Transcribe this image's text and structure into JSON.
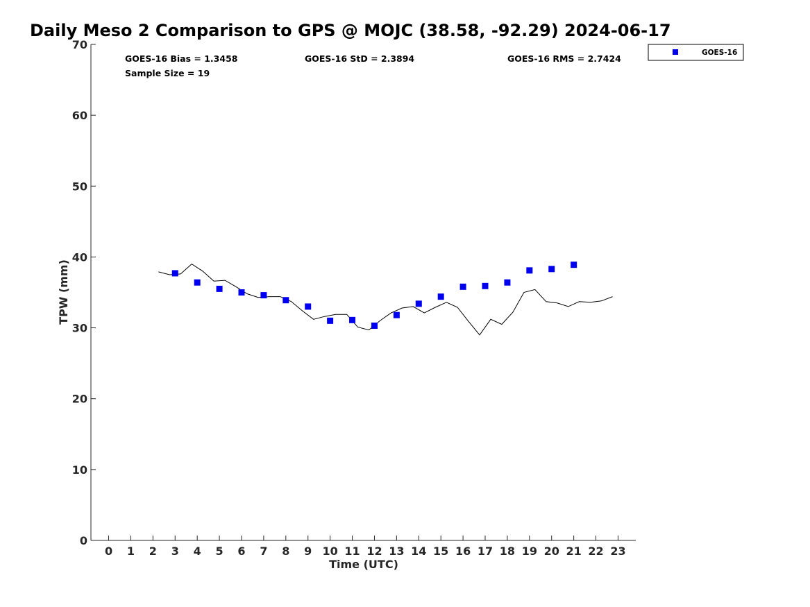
{
  "chart_data": {
    "type": "scatter",
    "title": "Daily Meso 2 Comparison to GPS @ MOJC (38.58, -92.29) 2024-06-17",
    "xlabel": "Time (UTC)",
    "ylabel": "TPW (mm)",
    "xlim": [
      -0.8,
      23.8
    ],
    "ylim": [
      0,
      70
    ],
    "xticks": [
      0,
      1,
      2,
      3,
      4,
      5,
      6,
      7,
      8,
      9,
      10,
      11,
      12,
      13,
      14,
      15,
      16,
      17,
      18,
      19,
      20,
      21,
      22,
      23
    ],
    "yticks": [
      0,
      10,
      20,
      30,
      40,
      50,
      60,
      70
    ],
    "grid": false,
    "legend_position": "top-right",
    "stats": {
      "bias": "GOES-16 Bias = 1.3458",
      "std": "GOES-16 StD = 2.3894",
      "rms": "GOES-16 RMS = 2.7424",
      "sample": "Sample Size = 19"
    },
    "series": [
      {
        "name": "GOES-16",
        "kind": "scatter",
        "marker": "square",
        "color": "#0000ee",
        "x": [
          3,
          4,
          5,
          6,
          7,
          8,
          9,
          10,
          11,
          12,
          13,
          14,
          15,
          16,
          17,
          18,
          19,
          20,
          21
        ],
        "y": [
          37.7,
          36.4,
          35.5,
          35.0,
          34.6,
          33.9,
          33.0,
          31.0,
          31.1,
          30.3,
          31.8,
          33.4,
          34.4,
          35.8,
          35.9,
          36.4,
          38.1,
          38.3,
          38.9
        ]
      },
      {
        "kind": "line",
        "color": "#000000",
        "x": [
          2.25,
          2.75,
          3.25,
          3.75,
          4.25,
          4.75,
          5.25,
          5.75,
          6.25,
          6.75,
          7.25,
          7.75,
          8.25,
          8.75,
          9.25,
          9.75,
          10.25,
          10.75,
          11.25,
          11.75,
          12.25,
          12.75,
          13.25,
          13.75,
          14.25,
          14.75,
          15.25,
          15.75,
          16.25,
          16.75,
          17.25,
          17.75,
          18.25,
          18.75,
          19.25,
          19.75,
          20.25,
          20.75,
          21.25,
          21.75,
          22.25,
          22.75
        ],
        "y": [
          37.9,
          37.5,
          37.6,
          39.0,
          38.0,
          36.6,
          36.7,
          35.8,
          34.8,
          34.3,
          34.4,
          34.4,
          33.7,
          32.4,
          31.2,
          31.6,
          31.9,
          31.9,
          30.1,
          29.7,
          31.0,
          32.1,
          32.8,
          33.0,
          32.1,
          32.9,
          33.6,
          32.9,
          30.9,
          29.0,
          31.2,
          30.5,
          32.2,
          35.0,
          35.4,
          33.7,
          33.5,
          33.0,
          33.7,
          33.6,
          33.8,
          34.4
        ]
      }
    ]
  }
}
